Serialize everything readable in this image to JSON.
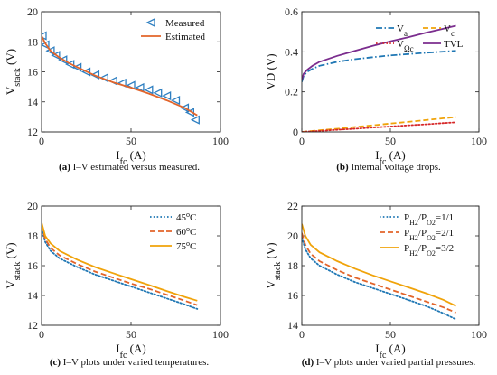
{
  "chart_data": [
    {
      "id": "a",
      "type": "scatter",
      "caption_letter": "(a)",
      "caption_text": " I–V estimated versus measured.",
      "ylabel_main": "V",
      "ylabel_sub": "stack",
      "ylabel_unit": " (V)",
      "xlabel_main": "I",
      "xlabel_sub": "fc",
      "xlabel_unit": " (A)",
      "xlim": [
        0,
        100
      ],
      "ylim": [
        12,
        20
      ],
      "xticks": [
        0,
        50,
        100
      ],
      "yticks": [
        12,
        14,
        16,
        18,
        20
      ],
      "grid": false,
      "legend": "top-right",
      "series": [
        {
          "name": "Measured",
          "kind": "marker",
          "color": "#2e7fc1",
          "x": [
            0.5,
            2,
            5,
            8,
            12,
            16,
            20,
            25,
            30,
            35,
            40,
            45,
            50,
            55,
            60,
            65,
            70,
            75,
            80,
            83,
            86
          ],
          "y": [
            18.4,
            17.8,
            17.4,
            17.1,
            16.8,
            16.5,
            16.3,
            16.0,
            15.8,
            15.6,
            15.4,
            15.25,
            15.1,
            14.95,
            14.8,
            14.6,
            14.4,
            14.1,
            13.6,
            13.3,
            12.8
          ]
        },
        {
          "name": "Estimated",
          "kind": "line",
          "color": "#e2642a",
          "dash": "solid",
          "x": [
            0,
            2,
            5,
            10,
            15,
            20,
            30,
            40,
            50,
            60,
            70,
            80,
            87
          ],
          "y": [
            18.4,
            17.9,
            17.4,
            16.95,
            16.6,
            16.3,
            15.75,
            15.3,
            14.95,
            14.55,
            14.1,
            13.6,
            13.1
          ]
        }
      ]
    },
    {
      "id": "b",
      "type": "line",
      "caption_letter": "(b)",
      "caption_text": " Internal voltage drops.",
      "ylabel_main": "VD",
      "ylabel_sub": "",
      "ylabel_unit": " (V)",
      "xlabel_main": "I",
      "xlabel_sub": "fc",
      "xlabel_unit": " (A)",
      "xlim": [
        0,
        100
      ],
      "ylim": [
        0,
        0.6
      ],
      "xticks": [
        0,
        50,
        100
      ],
      "yticks": [
        0,
        0.2,
        0.4,
        0.6
      ],
      "grid": false,
      "legend": "top-right",
      "series": [
        {
          "name": "V",
          "sub": "a",
          "color": "#1f77b4",
          "dash": "dashdot",
          "x": [
            0,
            1,
            3,
            6,
            10,
            20,
            30,
            40,
            50,
            60,
            70,
            80,
            87
          ],
          "y": [
            0.25,
            0.28,
            0.3,
            0.315,
            0.33,
            0.35,
            0.363,
            0.373,
            0.382,
            0.389,
            0.395,
            0.401,
            0.405
          ]
        },
        {
          "name": "V",
          "sub": "c",
          "color": "#f0a30a",
          "dash": "dashed",
          "x": [
            0,
            10,
            20,
            30,
            40,
            50,
            60,
            70,
            80,
            87
          ],
          "y": [
            0,
            0.008,
            0.016,
            0.025,
            0.033,
            0.042,
            0.05,
            0.059,
            0.068,
            0.074
          ]
        },
        {
          "name": "V",
          "sub": "Ωc",
          "color": "#d62728",
          "dash": "dotted",
          "x": [
            0,
            10,
            20,
            30,
            40,
            50,
            60,
            70,
            80,
            87
          ],
          "y": [
            0,
            0.005,
            0.011,
            0.016,
            0.022,
            0.027,
            0.033,
            0.038,
            0.044,
            0.048
          ]
        },
        {
          "name": "TVL",
          "sub": "",
          "color": "#7b2d8e",
          "dash": "solid",
          "x": [
            0,
            1,
            3,
            6,
            10,
            20,
            30,
            40,
            50,
            60,
            70,
            80,
            87
          ],
          "y": [
            0.26,
            0.29,
            0.31,
            0.33,
            0.35,
            0.38,
            0.405,
            0.43,
            0.452,
            0.473,
            0.495,
            0.515,
            0.53
          ]
        }
      ]
    },
    {
      "id": "c",
      "type": "line",
      "caption_letter": "(c)",
      "caption_text": " I–V plots under varied temperatures.",
      "ylabel_main": "V",
      "ylabel_sub": "stack",
      "ylabel_unit": " (V)",
      "xlabel_main": "I",
      "xlabel_sub": "fc",
      "xlabel_unit": " (A)",
      "xlim": [
        0,
        100
      ],
      "ylim": [
        12,
        20
      ],
      "xticks": [
        0,
        50,
        100
      ],
      "yticks": [
        12,
        14,
        16,
        18,
        20
      ],
      "grid": false,
      "legend": "top-right",
      "series": [
        {
          "name": "45",
          "unit_sup": "o",
          "unit": "C",
          "color": "#1f77b4",
          "dash": "dotted",
          "x": [
            0,
            2,
            5,
            10,
            20,
            30,
            40,
            50,
            60,
            70,
            80,
            87
          ],
          "y": [
            18.5,
            17.6,
            17.0,
            16.5,
            15.9,
            15.4,
            15.0,
            14.6,
            14.2,
            13.8,
            13.4,
            13.1
          ]
        },
        {
          "name": "60",
          "unit_sup": "o",
          "unit": "C",
          "color": "#e2642a",
          "dash": "dashed",
          "x": [
            0,
            2,
            5,
            10,
            20,
            30,
            40,
            50,
            60,
            70,
            80,
            87
          ],
          "y": [
            18.7,
            17.8,
            17.2,
            16.7,
            16.1,
            15.6,
            15.2,
            14.8,
            14.45,
            14.05,
            13.65,
            13.35
          ]
        },
        {
          "name": "75",
          "unit_sup": "o",
          "unit": "C",
          "color": "#f0a30a",
          "dash": "solid",
          "x": [
            0,
            2,
            5,
            10,
            20,
            30,
            40,
            50,
            60,
            70,
            80,
            87
          ],
          "y": [
            18.9,
            18.0,
            17.5,
            17.0,
            16.4,
            15.9,
            15.5,
            15.1,
            14.7,
            14.3,
            13.9,
            13.65
          ]
        }
      ]
    },
    {
      "id": "d",
      "type": "line",
      "caption_letter": "(d)",
      "caption_text": " I–V plots under varied partial pressures.",
      "ylabel_main": "V",
      "ylabel_sub": "stack",
      "ylabel_unit": " (V)",
      "xlabel_main": "I",
      "xlabel_sub": "fc",
      "xlabel_unit": " (A)",
      "xlim": [
        0,
        100
      ],
      "ylim": [
        14,
        22
      ],
      "xticks": [
        0,
        50,
        100
      ],
      "yticks": [
        14,
        16,
        18,
        20,
        22
      ],
      "grid": false,
      "legend": "top-right",
      "series": [
        {
          "p1": "P",
          "s1": "H2",
          "p2": "/P",
          "s2": "O2",
          "val": "=1/1",
          "color": "#1f77b4",
          "dash": "dotted",
          "x": [
            0,
            2,
            5,
            10,
            20,
            30,
            40,
            50,
            60,
            70,
            80,
            87
          ],
          "y": [
            19.9,
            19.1,
            18.5,
            18.0,
            17.4,
            16.9,
            16.5,
            16.1,
            15.7,
            15.3,
            14.8,
            14.4
          ]
        },
        {
          "p1": "P",
          "s1": "H2",
          "p2": "/P",
          "s2": "O2",
          "val": "=2/1",
          "color": "#e2642a",
          "dash": "dashed",
          "x": [
            0,
            2,
            5,
            10,
            20,
            30,
            40,
            50,
            60,
            70,
            80,
            87
          ],
          "y": [
            20.2,
            19.4,
            18.8,
            18.3,
            17.7,
            17.2,
            16.8,
            16.4,
            16.0,
            15.6,
            15.2,
            14.85
          ]
        },
        {
          "p1": "P",
          "s1": "H2",
          "p2": "/P",
          "s2": "O2",
          "val": "=3/2",
          "color": "#f0a30a",
          "dash": "solid",
          "x": [
            0,
            2,
            5,
            10,
            20,
            30,
            40,
            50,
            60,
            70,
            80,
            87
          ],
          "y": [
            20.8,
            20.0,
            19.4,
            18.9,
            18.3,
            17.8,
            17.35,
            16.95,
            16.55,
            16.15,
            15.7,
            15.3
          ]
        }
      ]
    }
  ]
}
